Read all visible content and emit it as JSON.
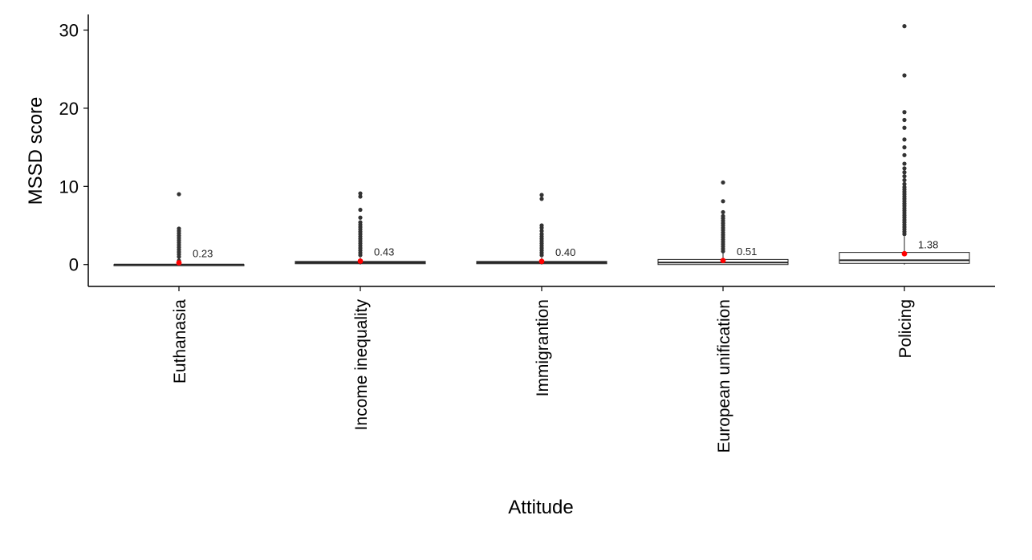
{
  "chart_data": {
    "type": "box",
    "title": "",
    "xlabel": "Attitude",
    "ylabel": "MSSD score",
    "ylim": [
      -2.8,
      32
    ],
    "yticks": [
      0,
      10,
      20,
      30
    ],
    "grid": false,
    "categories": [
      "Euthanasia",
      "Income inequality",
      "Immigrantion",
      "European unification",
      "Policing"
    ],
    "boxes": [
      {
        "category": "Euthanasia",
        "q1": 0,
        "median": 0,
        "q3": 0,
        "whisker_low": 0,
        "whisker_high": 0,
        "mean": 0.23,
        "mean_label": "0.23",
        "outliers": [
          0.5,
          1.0,
          1.3,
          1.6,
          1.9,
          2.2,
          2.5,
          2.8,
          3.1,
          3.4,
          3.7,
          4.0,
          4.3,
          4.6,
          9.0
        ]
      },
      {
        "category": "Income inequality",
        "q1": 0.1,
        "median": 0.25,
        "q3": 0.4,
        "whisker_low": 0,
        "whisker_high": 0.9,
        "mean": 0.43,
        "mean_label": "0.43",
        "outliers": [
          1.2,
          1.5,
          1.8,
          2.1,
          2.4,
          2.7,
          3.0,
          3.3,
          3.6,
          3.9,
          4.2,
          4.5,
          4.8,
          5.1,
          5.4,
          6.0,
          7.0,
          8.7,
          9.1
        ]
      },
      {
        "category": "Immigrantion",
        "q1": 0.1,
        "median": 0.25,
        "q3": 0.4,
        "whisker_low": 0,
        "whisker_high": 0.9,
        "mean": 0.4,
        "mean_label": "0.40",
        "outliers": [
          1.2,
          1.5,
          1.8,
          2.1,
          2.4,
          2.7,
          3.0,
          3.3,
          3.6,
          3.9,
          4.3,
          4.7,
          5.0,
          8.4,
          8.9
        ]
      },
      {
        "category": "European unification",
        "q1": 0.0,
        "median": 0.25,
        "q3": 0.65,
        "whisker_low": 0,
        "whisker_high": 1.5,
        "mean": 0.51,
        "mean_label": "0.51",
        "outliers": [
          1.7,
          2.0,
          2.3,
          2.6,
          2.9,
          3.2,
          3.5,
          3.8,
          4.1,
          4.4,
          4.7,
          5.0,
          5.3,
          5.6,
          5.9,
          6.2,
          6.7,
          8.1,
          10.5
        ]
      },
      {
        "category": "Policing",
        "q1": 0.15,
        "median": 0.55,
        "q3": 1.55,
        "whisker_low": 0,
        "whisker_high": 3.6,
        "mean": 1.38,
        "mean_label": "1.38",
        "outliers": [
          3.9,
          4.2,
          4.5,
          4.8,
          5.1,
          5.4,
          5.7,
          6.0,
          6.3,
          6.6,
          6.9,
          7.2,
          7.5,
          7.8,
          8.1,
          8.4,
          8.7,
          9.0,
          9.3,
          9.6,
          9.9,
          10.3,
          10.8,
          11.3,
          11.8,
          12.3,
          12.9,
          14.0,
          15.0,
          16.0,
          17.5,
          18.5,
          19.5,
          24.2,
          30.5
        ]
      }
    ]
  },
  "colors": {
    "outlier": "#333333",
    "mean": "#ff0000",
    "box_stroke": "#222222",
    "axis": "#000000"
  }
}
